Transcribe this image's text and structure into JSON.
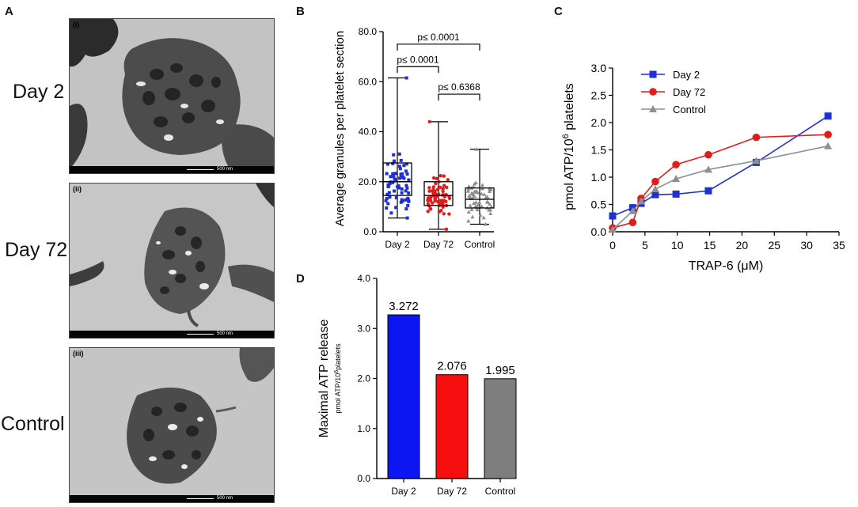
{
  "panel_a": {
    "letter": "A",
    "scale_text": "500 nm",
    "images": [
      {
        "roman": "(i)",
        "label": "Day 2"
      },
      {
        "roman": "(ii)",
        "label": "Day 72"
      },
      {
        "roman": "(iii)",
        "label": "Control"
      }
    ]
  },
  "chart_data": [
    {
      "panel": "B",
      "type": "box-scatter",
      "ylabel": "Average granules per platelet section",
      "ylim": [
        0,
        80
      ],
      "yticks": [
        "0.0",
        "20.0",
        "40.0",
        "60.0",
        "80.0"
      ],
      "categories": [
        "Day 2",
        "Day 72",
        "Control"
      ],
      "colors": [
        "#1f2fd6",
        "#e21b1b",
        "#8f8f8f"
      ],
      "boxes": [
        {
          "min": 5.5,
          "q1": 14.5,
          "median": 20.0,
          "q3": 27.5,
          "max": 61.5
        },
        {
          "min": 1.0,
          "q1": 10.5,
          "median": 14.5,
          "q3": 20.0,
          "max": 44.0
        },
        {
          "min": 3.0,
          "q1": 9.5,
          "median": 13.0,
          "q3": 17.5,
          "max": 33.0
        }
      ],
      "comparisons": [
        {
          "from": "Day 2",
          "to": "Control",
          "label": "p≤ 0.0001",
          "y": 75
        },
        {
          "from": "Day 2",
          "to": "Day 72",
          "label": "p≤ 0.0001",
          "y": 66
        },
        {
          "from": "Day 72",
          "to": "Control",
          "label": "p≤ 0.6368",
          "y": 55
        }
      ]
    },
    {
      "panel": "C",
      "type": "line",
      "xlabel": "TRAP-6 (μM)",
      "ylabel_main": "pmol ATP/10",
      "ylabel_sup": "6",
      "ylabel_tail": " platelets",
      "xlim": [
        0,
        35
      ],
      "ylim": [
        0,
        3.0
      ],
      "xticks": [
        "0",
        "5",
        "10",
        "15",
        "20",
        "25",
        "30",
        "35"
      ],
      "yticks": [
        "0.0",
        "0.5",
        "1.0",
        "1.5",
        "2.0",
        "2.5",
        "3.0"
      ],
      "series": [
        {
          "name": "Day 2",
          "color": "#1f2fd6",
          "marker": "square",
          "x": [
            0,
            3.1,
            4.4,
            6.6,
            9.8,
            14.8,
            22.2,
            33.3
          ],
          "y": [
            0.29,
            0.44,
            0.52,
            0.68,
            0.69,
            0.75,
            1.27,
            2.12
          ]
        },
        {
          "name": "Day 72",
          "color": "#e21b1b",
          "marker": "circle",
          "x": [
            0,
            3.1,
            4.4,
            6.6,
            9.8,
            14.8,
            22.2,
            33.3
          ],
          "y": [
            0.07,
            0.17,
            0.61,
            0.92,
            1.23,
            1.41,
            1.73,
            1.78
          ]
        },
        {
          "name": "Control",
          "color": "#8f8f8f",
          "marker": "triangle",
          "x": [
            0,
            3.1,
            4.4,
            6.6,
            9.8,
            14.8,
            22.2,
            33.3
          ],
          "y": [
            0.04,
            0.38,
            0.56,
            0.78,
            0.97,
            1.14,
            1.3,
            1.57
          ]
        }
      ]
    },
    {
      "panel": "D",
      "type": "bar",
      "ylabel": "Maximal ATP release",
      "ylabel_sub_main": "pmol ATP/10",
      "ylabel_sub_sup": "6",
      "ylabel_sub_tail": "platelets",
      "ylim": [
        0,
        4.0
      ],
      "yticks": [
        "0.0",
        "1.0",
        "2.0",
        "3.0",
        "4.0"
      ],
      "categories": [
        "Day 2",
        "Day 72",
        "Control"
      ],
      "values": [
        3.272,
        2.076,
        1.995
      ],
      "value_labels": [
        "3.272",
        "2.076",
        "1.995"
      ],
      "colors": [
        "#0b16f0",
        "#f50f0f",
        "#7e7e7e"
      ]
    }
  ]
}
